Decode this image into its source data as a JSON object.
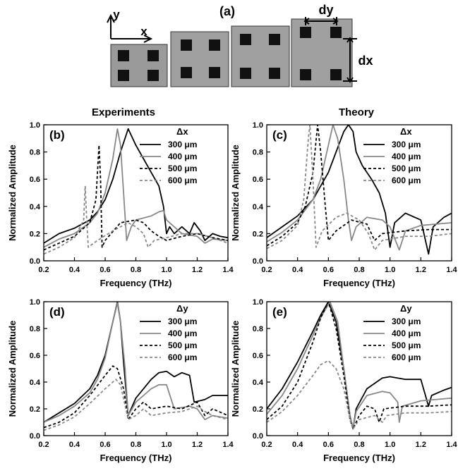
{
  "panel_a": {
    "label": "(a)",
    "axis_y": "y",
    "axis_x": "x",
    "dy": "dy",
    "dx": "dx"
  },
  "column_titles": [
    "Experiments",
    "Theory"
  ],
  "chart_data": [
    {
      "type": "line",
      "label": "(b)",
      "xlabel": "Frequency (THz)",
      "ylabel": "Normalized Amplitude",
      "legend_title": "Δx",
      "legend": "upper right",
      "xlim": [
        0.2,
        1.4
      ],
      "xticks": [
        0.2,
        0.4,
        0.6,
        0.8,
        {
          "value": 1,
          "label": "1.0"
        },
        1.2,
        1.4
      ],
      "ylim": [
        0,
        1
      ],
      "yticks": [
        {
          "value": 0,
          "label": "0.0"
        },
        0.2,
        0.4,
        0.6,
        0.8,
        {
          "value": 1,
          "label": "1.0"
        }
      ],
      "series": [
        {
          "name": "300 μm",
          "color": "#000000",
          "dash": false,
          "x": [
            0.2,
            0.3,
            0.4,
            0.5,
            0.55,
            0.6,
            0.65,
            0.7,
            0.75,
            0.8,
            0.85,
            0.9,
            0.95,
            0.98,
            1.0,
            1.02,
            1.05,
            1.1,
            1.15,
            1.18,
            1.22,
            1.25,
            1.3,
            1.35,
            1.4
          ],
          "values": [
            0.13,
            0.2,
            0.24,
            0.3,
            0.36,
            0.45,
            0.6,
            0.8,
            0.97,
            0.85,
            0.75,
            0.65,
            0.55,
            0.4,
            0.2,
            0.25,
            0.2,
            0.25,
            0.2,
            0.28,
            0.22,
            0.15,
            0.2,
            0.18,
            0.17
          ]
        },
        {
          "name": "400 μm",
          "color": "#888888",
          "dash": false,
          "x": [
            0.2,
            0.3,
            0.4,
            0.5,
            0.55,
            0.6,
            0.65,
            0.68,
            0.7,
            0.72,
            0.74,
            0.77,
            0.8,
            0.9,
            0.95,
            0.98,
            1.0,
            1.05,
            1.1,
            1.2,
            1.25,
            1.3,
            1.4
          ],
          "values": [
            0.1,
            0.16,
            0.2,
            0.28,
            0.35,
            0.5,
            0.75,
            0.97,
            0.85,
            0.5,
            0.15,
            0.25,
            0.3,
            0.33,
            0.36,
            0.37,
            0.3,
            0.25,
            0.2,
            0.18,
            0.13,
            0.16,
            0.15
          ]
        },
        {
          "name": "500 μm",
          "color": "#000000",
          "dash": true,
          "x": [
            0.2,
            0.3,
            0.4,
            0.5,
            0.54,
            0.56,
            0.57,
            0.58,
            0.6,
            0.7,
            0.8,
            0.85,
            0.9,
            0.95,
            1.0,
            1.1,
            1.2,
            1.3,
            1.4
          ],
          "values": [
            0.08,
            0.13,
            0.18,
            0.28,
            0.45,
            0.85,
            0.6,
            0.1,
            0.15,
            0.28,
            0.3,
            0.28,
            0.22,
            0.18,
            0.15,
            0.18,
            0.2,
            0.17,
            0.15
          ]
        },
        {
          "name": "600 μm",
          "color": "#888888",
          "dash": true,
          "x": [
            0.2,
            0.3,
            0.4,
            0.46,
            0.47,
            0.48,
            0.49,
            0.55,
            0.65,
            0.75,
            0.8,
            0.85,
            0.88,
            0.92,
            1.0,
            1.1,
            1.2,
            1.3,
            1.4
          ],
          "values": [
            0.05,
            0.1,
            0.17,
            0.3,
            0.55,
            0.3,
            0.1,
            0.15,
            0.22,
            0.28,
            0.25,
            0.2,
            0.1,
            0.15,
            0.17,
            0.2,
            0.2,
            0.17,
            0.13
          ]
        }
      ]
    },
    {
      "type": "line",
      "label": "(c)",
      "xlabel": "Frequency (THz)",
      "ylabel": "Normalized Amplitude",
      "legend_title": "Δx",
      "legend": "upper right",
      "xlim": [
        0.2,
        1.4
      ],
      "xticks": [
        0.2,
        0.4,
        0.6,
        0.8,
        {
          "value": 1,
          "label": "1.0"
        },
        1.2,
        1.4
      ],
      "ylim": [
        0,
        1
      ],
      "yticks": [
        {
          "value": 0,
          "label": "0.0"
        },
        0.2,
        0.4,
        0.6,
        0.8,
        {
          "value": 1,
          "label": "1.0"
        }
      ],
      "series": [
        {
          "name": "300 μm",
          "color": "#000000",
          "dash": false,
          "x": [
            0.2,
            0.3,
            0.4,
            0.5,
            0.6,
            0.65,
            0.7,
            0.73,
            0.76,
            0.78,
            0.82,
            0.88,
            0.93,
            0.97,
            1.0,
            1.03,
            1.1,
            1.2,
            1.25,
            1.28,
            1.35,
            1.4
          ],
          "values": [
            0.17,
            0.25,
            0.33,
            0.45,
            0.65,
            0.8,
            0.95,
            1.0,
            0.95,
            0.8,
            0.7,
            0.6,
            0.5,
            0.35,
            0.1,
            0.28,
            0.35,
            0.3,
            0.05,
            0.25,
            0.32,
            0.35
          ]
        },
        {
          "name": "400 μm",
          "color": "#888888",
          "dash": false,
          "x": [
            0.2,
            0.3,
            0.4,
            0.5,
            0.55,
            0.6,
            0.63,
            0.66,
            0.7,
            0.73,
            0.75,
            0.78,
            0.85,
            0.95,
            1.0,
            1.06,
            1.1,
            1.2,
            1.3,
            1.4
          ],
          "values": [
            0.14,
            0.21,
            0.3,
            0.45,
            0.6,
            0.85,
            1.0,
            0.9,
            0.6,
            0.3,
            0.15,
            0.25,
            0.32,
            0.3,
            0.25,
            0.08,
            0.22,
            0.26,
            0.27,
            0.28
          ]
        },
        {
          "name": "500 μm",
          "color": "#000000",
          "dash": true,
          "x": [
            0.2,
            0.3,
            0.4,
            0.45,
            0.5,
            0.53,
            0.55,
            0.58,
            0.6,
            0.65,
            0.75,
            0.85,
            0.9,
            0.95,
            1.1,
            1.25,
            1.4
          ],
          "values": [
            0.11,
            0.18,
            0.28,
            0.4,
            0.65,
            1.0,
            0.8,
            0.4,
            0.15,
            0.22,
            0.3,
            0.27,
            0.15,
            0.2,
            0.22,
            0.23,
            0.23
          ]
        },
        {
          "name": "600 μm",
          "color": "#888888",
          "dash": true,
          "x": [
            0.2,
            0.3,
            0.4,
            0.44,
            0.47,
            0.48,
            0.5,
            0.52,
            0.56,
            0.65,
            0.72,
            0.8,
            0.86,
            0.9,
            0.95,
            1.1,
            1.25,
            1.4
          ],
          "values": [
            0.09,
            0.15,
            0.26,
            0.45,
            0.9,
            1.0,
            0.6,
            0.1,
            0.22,
            0.32,
            0.35,
            0.3,
            0.2,
            0.08,
            0.15,
            0.18,
            0.18,
            0.2
          ]
        }
      ]
    },
    {
      "type": "line",
      "label": "(d)",
      "xlabel": "Frequency (THz)",
      "ylabel": "Normalized Amplitude",
      "legend_title": "Δy",
      "legend": "upper right",
      "xlim": [
        0.2,
        1.4
      ],
      "xticks": [
        0.2,
        0.4,
        0.6,
        0.8,
        {
          "value": 1,
          "label": "1.0"
        },
        1.2,
        1.4
      ],
      "ylim": [
        0,
        1
      ],
      "yticks": [
        {
          "value": 0,
          "label": "0.0"
        },
        0.2,
        0.4,
        0.6,
        0.8,
        {
          "value": 1,
          "label": "1.0"
        }
      ],
      "series": [
        {
          "name": "300 μm",
          "color": "#000000",
          "dash": false,
          "x": [
            0.2,
            0.3,
            0.4,
            0.5,
            0.55,
            0.6,
            0.65,
            0.68,
            0.7,
            0.72,
            0.75,
            0.8,
            0.9,
            0.95,
            1.0,
            1.05,
            1.1,
            1.15,
            1.18,
            1.25,
            1.3,
            1.4
          ],
          "values": [
            0.1,
            0.17,
            0.24,
            0.35,
            0.45,
            0.6,
            0.85,
            1.0,
            0.85,
            0.55,
            0.15,
            0.28,
            0.42,
            0.47,
            0.48,
            0.44,
            0.47,
            0.45,
            0.25,
            0.27,
            0.3,
            0.3
          ]
        },
        {
          "name": "400 μm",
          "color": "#888888",
          "dash": false,
          "x": [
            0.2,
            0.3,
            0.4,
            0.5,
            0.55,
            0.6,
            0.65,
            0.68,
            0.7,
            0.73,
            0.75,
            0.8,
            0.9,
            0.95,
            1.0,
            1.05,
            1.15,
            1.2,
            1.25,
            1.3,
            1.4
          ],
          "values": [
            0.1,
            0.15,
            0.22,
            0.32,
            0.42,
            0.58,
            0.85,
            0.99,
            0.85,
            0.5,
            0.15,
            0.25,
            0.35,
            0.38,
            0.38,
            0.2,
            0.22,
            0.2,
            0.12,
            0.15,
            0.13
          ]
        },
        {
          "name": "500 μm",
          "color": "#000000",
          "dash": true,
          "x": [
            0.2,
            0.3,
            0.4,
            0.5,
            0.6,
            0.65,
            0.68,
            0.72,
            0.75,
            0.8,
            0.85,
            0.9,
            1.0,
            1.1,
            1.2,
            1.25,
            1.3,
            1.4
          ],
          "values": [
            0.06,
            0.1,
            0.17,
            0.3,
            0.45,
            0.52,
            0.5,
            0.35,
            0.12,
            0.2,
            0.25,
            0.2,
            0.22,
            0.2,
            0.25,
            0.15,
            0.2,
            0.15
          ]
        },
        {
          "name": "600 μm",
          "color": "#888888",
          "dash": true,
          "x": [
            0.2,
            0.3,
            0.4,
            0.5,
            0.6,
            0.67,
            0.7,
            0.75,
            0.8,
            0.85,
            0.9,
            1.0,
            1.1,
            1.2,
            1.25,
            1.3,
            1.4
          ],
          "values": [
            0.04,
            0.08,
            0.14,
            0.24,
            0.35,
            0.42,
            0.38,
            0.12,
            0.15,
            0.2,
            0.15,
            0.17,
            0.18,
            0.22,
            0.18,
            0.15,
            0.12
          ]
        }
      ]
    },
    {
      "type": "line",
      "label": "(e)",
      "xlabel": "Frequency (THz)",
      "ylabel": "Normalized Amplitude",
      "legend_title": "Δy",
      "legend": "upper right",
      "xlim": [
        0.2,
        1.4
      ],
      "xticks": [
        0.2,
        0.4,
        0.6,
        0.8,
        {
          "value": 1,
          "label": "1.0"
        },
        1.2,
        1.4
      ],
      "ylim": [
        0,
        1
      ],
      "yticks": [
        {
          "value": 0,
          "label": "0.0"
        },
        0.2,
        0.4,
        0.6,
        0.8,
        {
          "value": 1,
          "label": "1.0"
        }
      ],
      "series": [
        {
          "name": "300 μm",
          "color": "#000000",
          "dash": false,
          "x": [
            0.2,
            0.3,
            0.4,
            0.5,
            0.55,
            0.6,
            0.65,
            0.7,
            0.74,
            0.76,
            0.78,
            0.85,
            0.95,
            1.0,
            1.1,
            1.2,
            1.25,
            1.27,
            1.35,
            1.4
          ],
          "values": [
            0.2,
            0.35,
            0.55,
            0.78,
            0.9,
            1.0,
            0.85,
            0.5,
            0.15,
            0.05,
            0.2,
            0.35,
            0.43,
            0.44,
            0.42,
            0.42,
            0.22,
            0.3,
            0.34,
            0.36
          ]
        },
        {
          "name": "400 μm",
          "color": "#888888",
          "dash": false,
          "x": [
            0.2,
            0.3,
            0.4,
            0.5,
            0.55,
            0.61,
            0.66,
            0.7,
            0.74,
            0.76,
            0.78,
            0.85,
            0.95,
            1.0,
            1.05,
            1.06,
            1.08,
            1.2,
            1.4
          ],
          "values": [
            0.16,
            0.3,
            0.5,
            0.75,
            0.88,
            1.0,
            0.85,
            0.5,
            0.15,
            0.05,
            0.18,
            0.3,
            0.33,
            0.32,
            0.25,
            0.1,
            0.22,
            0.26,
            0.28
          ]
        },
        {
          "name": "500 μm",
          "color": "#000000",
          "dash": true,
          "x": [
            0.2,
            0.3,
            0.4,
            0.5,
            0.55,
            0.6,
            0.65,
            0.7,
            0.74,
            0.76,
            0.8,
            0.85,
            0.9,
            0.93,
            0.96,
            1.1,
            1.25,
            1.4
          ],
          "values": [
            0.12,
            0.22,
            0.4,
            0.7,
            0.88,
            1.0,
            0.8,
            0.45,
            0.12,
            0.05,
            0.15,
            0.22,
            0.2,
            0.1,
            0.2,
            0.22,
            0.22,
            0.23
          ]
        },
        {
          "name": "600 μm",
          "color": "#888888",
          "dash": true,
          "x": [
            0.2,
            0.3,
            0.4,
            0.5,
            0.55,
            0.6,
            0.65,
            0.7,
            0.74,
            0.76,
            0.8,
            0.9,
            0.95,
            0.98,
            1.1,
            1.25,
            1.4
          ],
          "values": [
            0.1,
            0.18,
            0.3,
            0.45,
            0.53,
            0.56,
            0.5,
            0.35,
            0.12,
            0.05,
            0.12,
            0.15,
            0.1,
            0.15,
            0.17,
            0.17,
            0.18
          ]
        }
      ]
    }
  ]
}
